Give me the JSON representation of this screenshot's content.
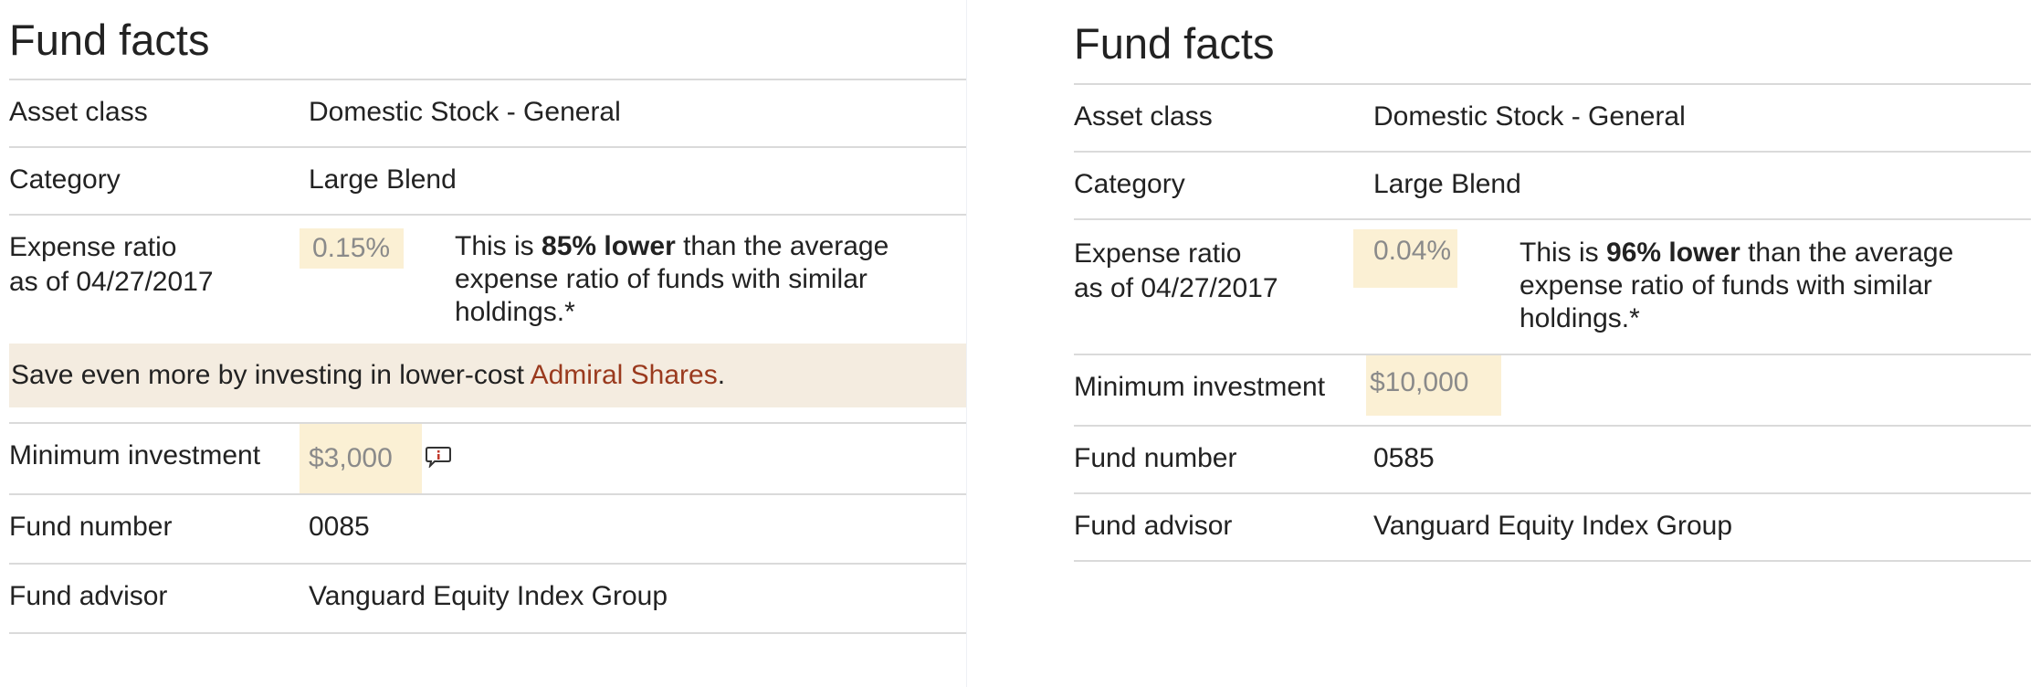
{
  "left": {
    "title": "Fund facts",
    "asset_class_label": "Asset class",
    "asset_class_value": "Domestic Stock - General",
    "category_label": "Category",
    "category_value": "Large Blend",
    "expense_label_line1": "Expense ratio",
    "expense_label_line2": "as of 04/27/2017",
    "expense_value": "0.15%",
    "expense_note_prefix": "This is ",
    "expense_note_bold": "85% lower",
    "expense_note_line1_suffix": " than the average",
    "expense_note_line2": "expense ratio of funds with similar",
    "expense_note_line3": "holdings.*",
    "banner_text": "Save even more by investing in lower-cost ",
    "banner_link": "Admiral Shares",
    "banner_period": ".",
    "min_invest_label": "Minimum investment",
    "min_invest_value": "$3,000",
    "fund_number_label": "Fund number",
    "fund_number_value": "0085",
    "fund_advisor_label": "Fund advisor",
    "fund_advisor_value": "Vanguard Equity Index Group"
  },
  "right": {
    "title": "Fund facts",
    "asset_class_label": "Asset class",
    "asset_class_value": "Domestic Stock - General",
    "category_label": "Category",
    "category_value": "Large Blend",
    "expense_label_line1": "Expense ratio",
    "expense_label_line2": "as of 04/27/2017",
    "expense_value": "0.04%",
    "expense_note_prefix": "This is ",
    "expense_note_bold": "96% lower",
    "expense_note_line1_suffix": " than the average",
    "expense_note_line2": "expense ratio of funds with similar",
    "expense_note_line3": "holdings.*",
    "min_invest_label": "Minimum investment",
    "min_invest_value": "$10,000",
    "fund_number_label": "Fund number",
    "fund_number_value": "0585",
    "fund_advisor_label": "Fund advisor",
    "fund_advisor_value": "Vanguard Equity Index Group"
  },
  "icons": {
    "min_invest_info": "info-speech-bubble-icon"
  },
  "colors": {
    "highlight_bg": "#fbf0d4",
    "banner_bg": "#f4ece0",
    "link": "#9a3a1e",
    "muted_value": "#8a8a8a"
  }
}
